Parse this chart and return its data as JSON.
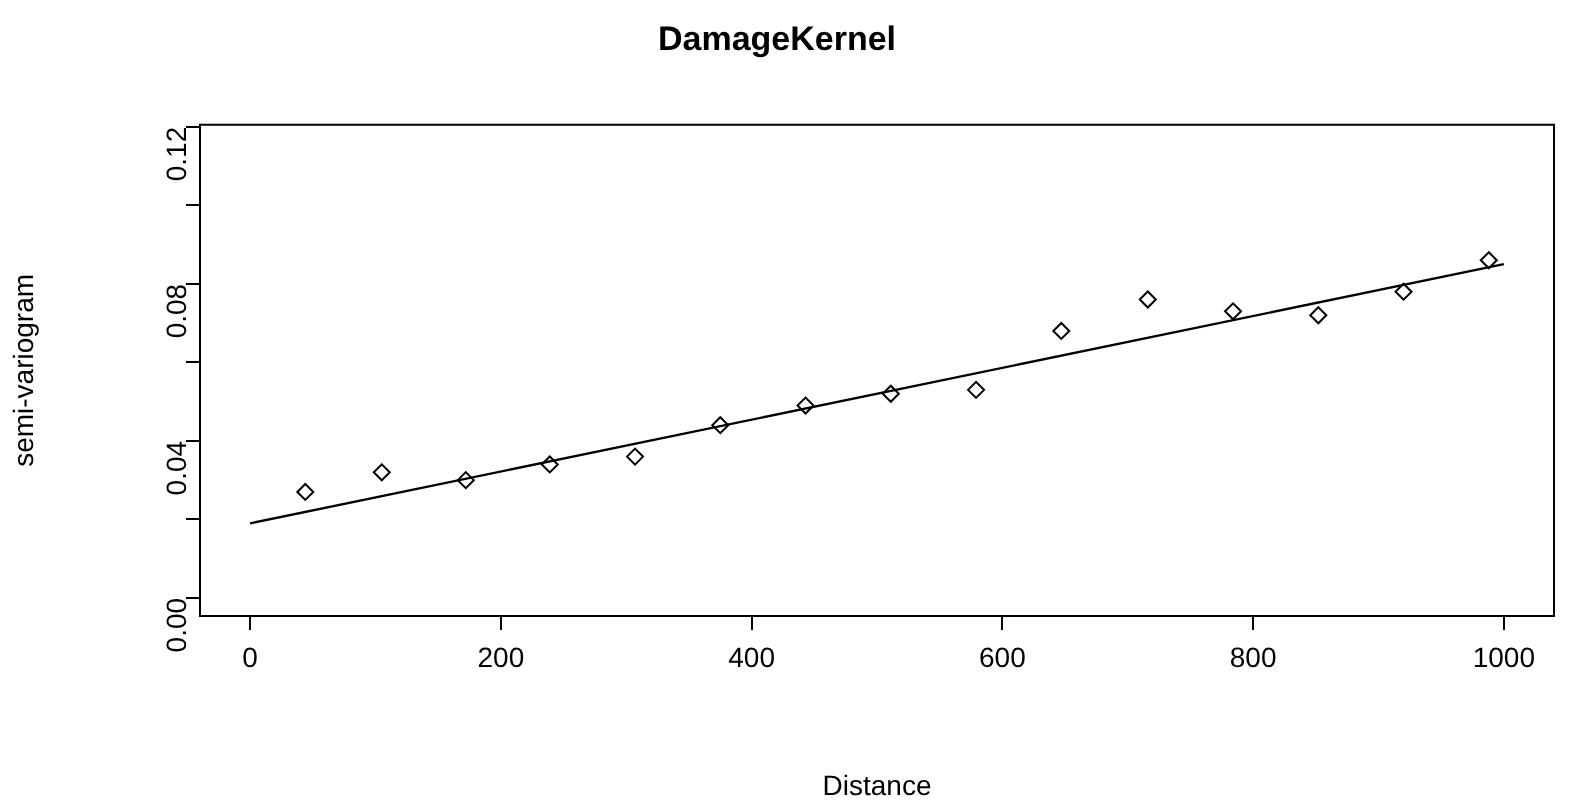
{
  "chart_data": {
    "type": "scatter",
    "title": "DamageKernel",
    "xlabel": "Distance",
    "ylabel": "semi-variogram",
    "marker": "diamond",
    "grid": false,
    "legend": false,
    "xlim": [
      -40,
      1040
    ],
    "xticks": [
      0,
      200,
      400,
      600,
      800,
      1000
    ],
    "ylim": [
      -0.0046,
      0.1205
    ],
    "yticks": [
      {
        "value": 0,
        "label": "0.00"
      },
      {
        "value": 0.02,
        "label": null
      },
      {
        "value": 0.04,
        "label": "0.04"
      },
      {
        "value": 0.06,
        "label": null
      },
      {
        "value": 0.08,
        "label": "0.08"
      },
      {
        "value": 0.1,
        "label": null
      },
      {
        "value": 0.12,
        "label": "0.12"
      }
    ],
    "series": [
      {
        "color": "#000000",
        "x": [
          44,
          105,
          172,
          239,
          307,
          375,
          443,
          511,
          579,
          647,
          716,
          784,
          852,
          920,
          988
        ],
        "values": [
          0.027,
          0.032,
          0.03,
          0.034,
          0.036,
          0.044,
          0.049,
          0.052,
          0.053,
          0.068,
          0.076,
          0.073,
          0.072,
          0.078,
          0.086
        ]
      },
      {
        "type": "line",
        "marker": "none",
        "line_style": "solid",
        "color": "#000000",
        "x": [
          0,
          1000
        ],
        "values": [
          0.019,
          0.085
        ]
      }
    ]
  }
}
